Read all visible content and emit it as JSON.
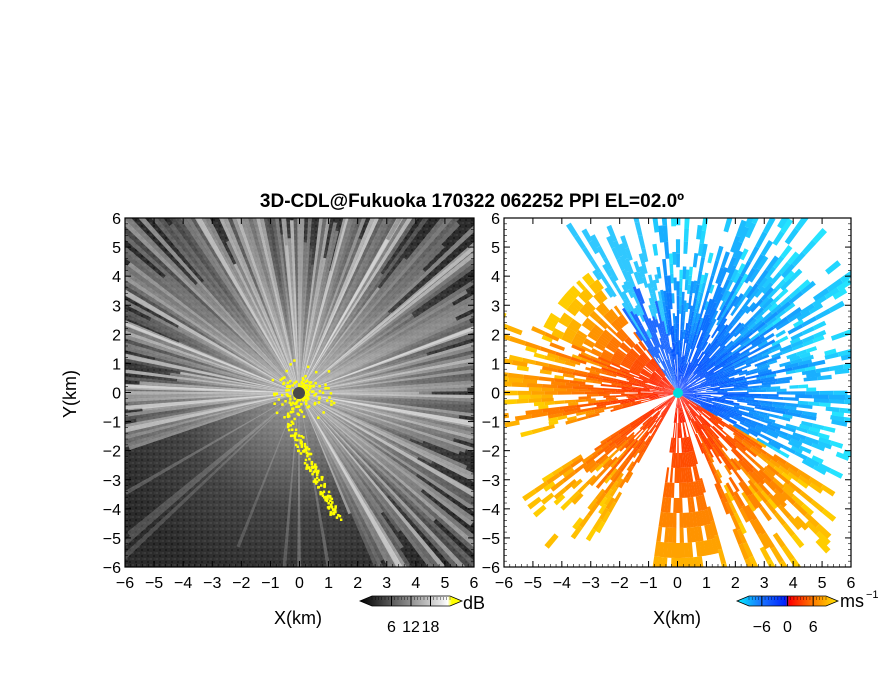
{
  "chart_data": [
    {
      "type": "heatmap",
      "panel": "reflectivity",
      "title": "3D-CDL@Fukuoka 170322 062252 PPI EL=02.0º",
      "xlabel": "X(km)",
      "ylabel": "Y(km)",
      "xlim": [
        -6,
        6
      ],
      "ylim": [
        -6,
        6
      ],
      "x_ticks": [
        "−6",
        "−5",
        "−4",
        "−3",
        "−2",
        "−1",
        "0",
        "1",
        "2",
        "3",
        "4",
        "5",
        "6"
      ],
      "y_ticks": [
        "6",
        "5",
        "4",
        "3",
        "2",
        "1",
        "0",
        "−1",
        "−2",
        "−3",
        "−4",
        "−5",
        "−6"
      ],
      "colorbar": {
        "unit": "dB",
        "tick_labels": [
          "6",
          "12",
          "18"
        ],
        "tick_values": [
          6,
          12,
          18
        ],
        "range": [
          0,
          24
        ],
        "colors": [
          "#000000",
          "#ffffff",
          "#ffff00"
        ]
      },
      "colors": {
        "background": "#262626",
        "high": "#ffffff",
        "saturated": "#ffff00",
        "radar_site": "#444444"
      }
    },
    {
      "type": "heatmap",
      "panel": "doppler_velocity",
      "xlabel": "X(km)",
      "xlim": [
        -6,
        6
      ],
      "ylim": [
        -6,
        6
      ],
      "x_ticks": [
        "−6",
        "−5",
        "−4",
        "−3",
        "−2",
        "−1",
        "0",
        "1",
        "2",
        "3",
        "4",
        "5",
        "6"
      ],
      "y_ticks": [
        "6",
        "5",
        "4",
        "3",
        "2",
        "1",
        "0",
        "−1",
        "−2",
        "−3",
        "−4",
        "−5",
        "−6"
      ],
      "colorbar": {
        "unit": "ms",
        "unit_exponent": "−1",
        "tick_labels": [
          "−6",
          "0",
          "6"
        ],
        "tick_values": [
          -6,
          0,
          6
        ],
        "range": [
          -9,
          9
        ],
        "colors": [
          "#00e5ee",
          "#0033ff",
          "#ff0000",
          "#ff9900",
          "#ffee00"
        ]
      },
      "colors": {
        "toward": "#0050ff",
        "away": "#ff3300",
        "radar_site": "#00dddd"
      }
    }
  ]
}
